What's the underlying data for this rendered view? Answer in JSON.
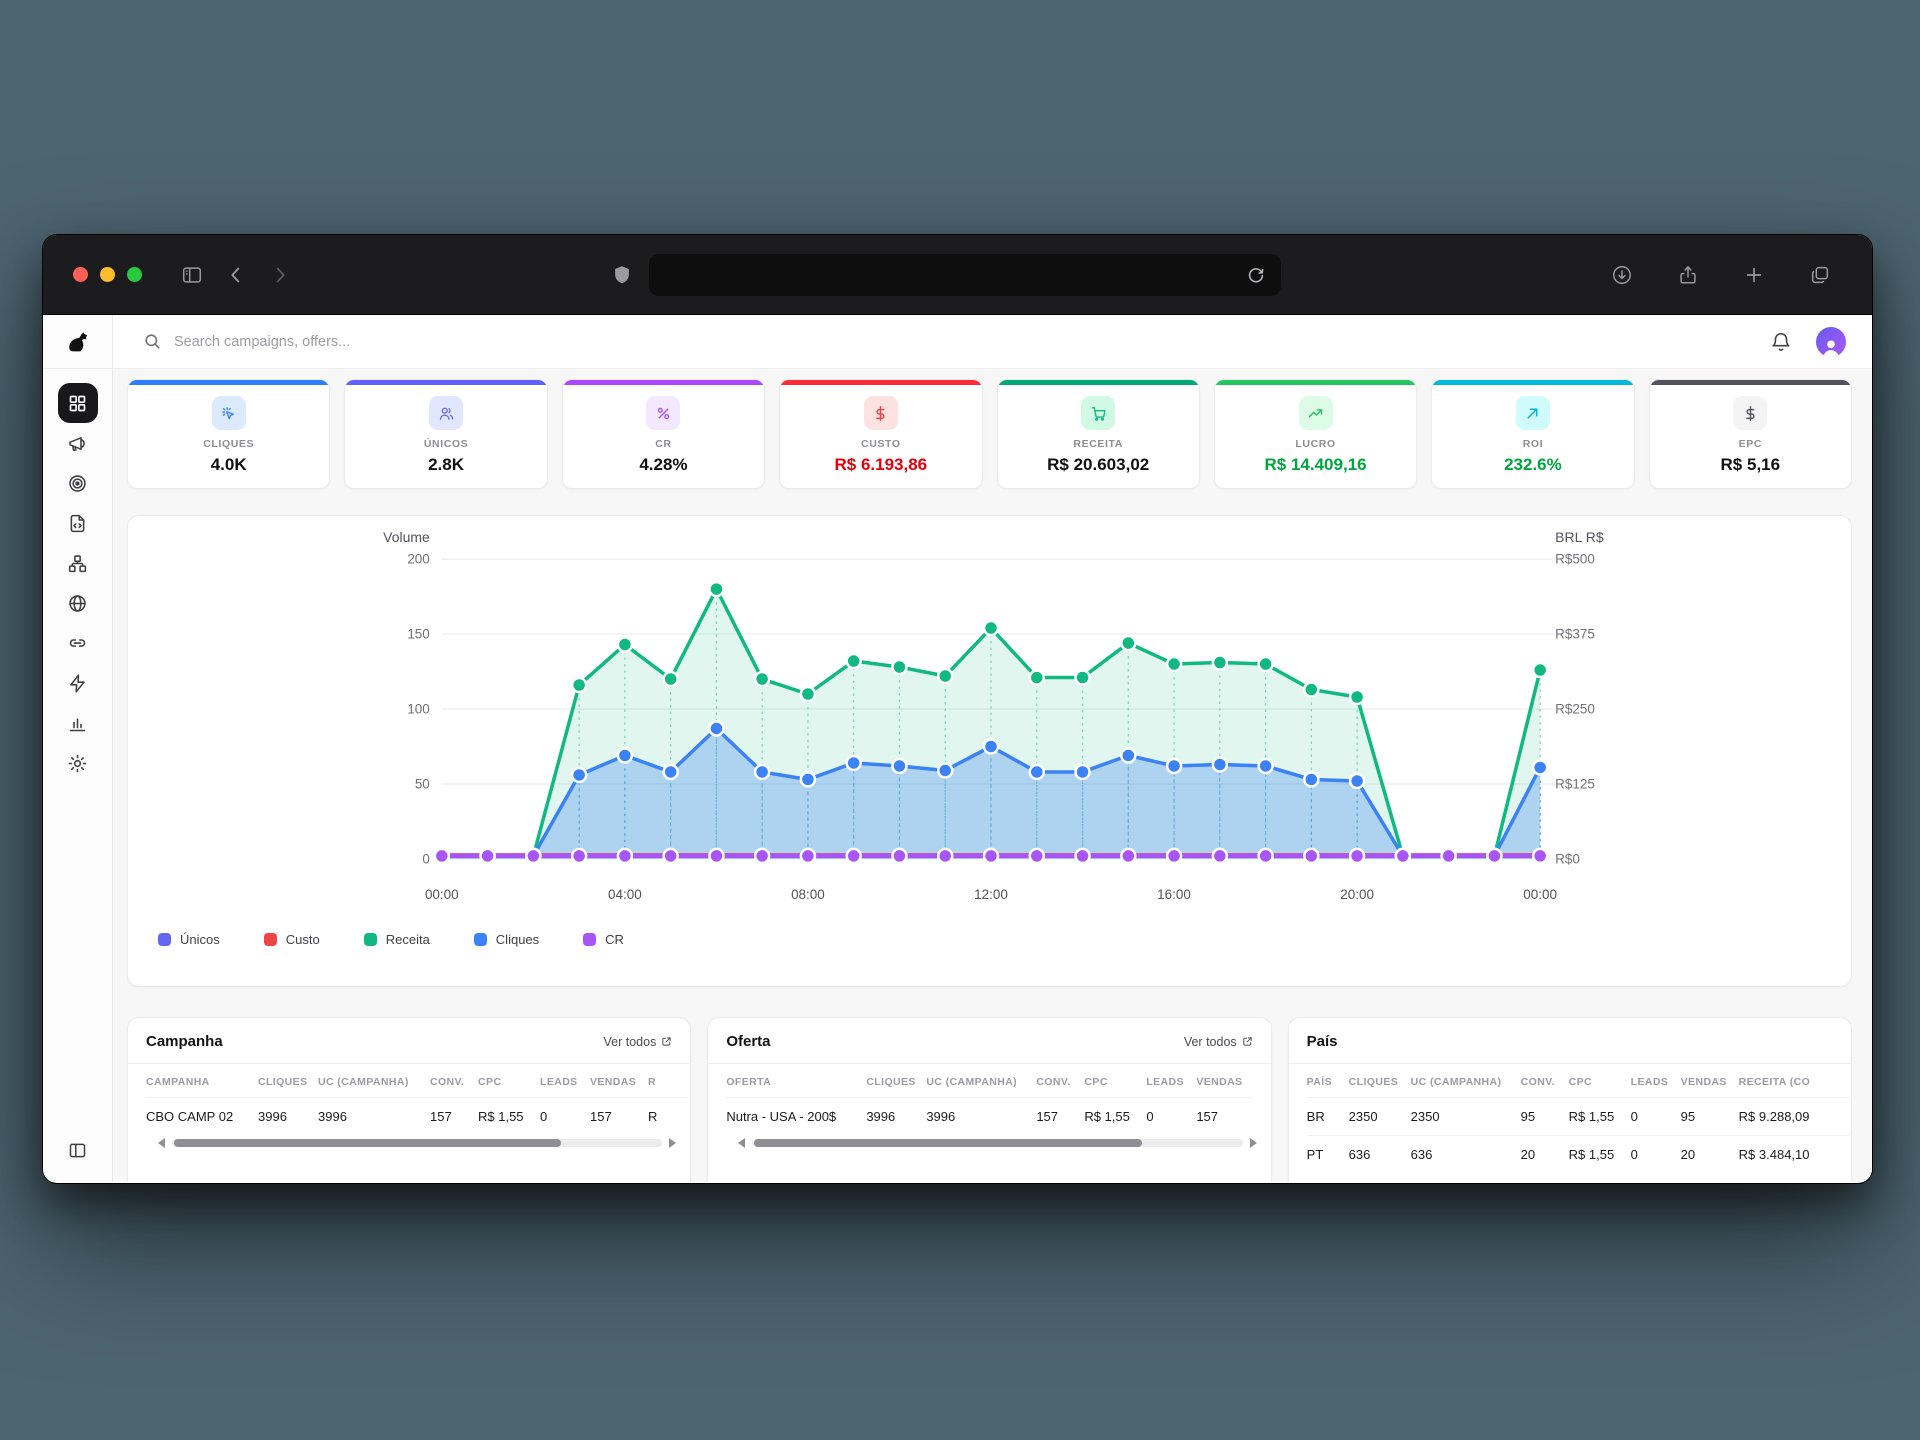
{
  "browser": {
    "traffic_lights": {
      "close": "#ff5f57",
      "minimize": "#febc2e",
      "zoom": "#28c840"
    },
    "url_text": ""
  },
  "header": {
    "search_placeholder": "Search campaigns, offers..."
  },
  "sidebar": {
    "items": [
      {
        "id": "dashboard",
        "icon": "dashboard-grid-icon",
        "active": true
      },
      {
        "id": "campaigns",
        "icon": "megaphone-icon",
        "active": false
      },
      {
        "id": "offers",
        "icon": "target-icon",
        "active": false
      },
      {
        "id": "landers",
        "icon": "file-code-icon",
        "active": false
      },
      {
        "id": "flows",
        "icon": "sitemap-icon",
        "active": false
      },
      {
        "id": "domains",
        "icon": "globe-icon",
        "active": false
      },
      {
        "id": "links",
        "icon": "link-icon",
        "active": false
      },
      {
        "id": "automation",
        "icon": "zap-icon",
        "active": false
      },
      {
        "id": "reports",
        "icon": "bar-chart-icon",
        "active": false
      },
      {
        "id": "settings",
        "icon": "gear-icon",
        "active": false
      }
    ]
  },
  "kpis": [
    {
      "label": "CLIQUES",
      "value": "4.0K",
      "accent": "#2b7fff",
      "icon": "cursor-click-icon",
      "icon_color": "#3b82f6",
      "icon_bg": "#dbeafe",
      "value_color": "#111113"
    },
    {
      "label": "ÚNICOS",
      "value": "2.8K",
      "accent": "#615fff",
      "icon": "users-icon",
      "icon_color": "#6366f1",
      "icon_bg": "#e0e7ff",
      "value_color": "#111113"
    },
    {
      "label": "CR",
      "value": "4.28%",
      "accent": "#ad46ff",
      "icon": "percent-icon",
      "icon_color": "#a855f7",
      "icon_bg": "#f3e8ff",
      "value_color": "#111113"
    },
    {
      "label": "CUSTO",
      "value": "R$ 6.193,86",
      "accent": "#fb2c36",
      "icon": "dollar-icon",
      "icon_color": "#ef4444",
      "icon_bg": "#fee2e2",
      "value_color": "#e7000b"
    },
    {
      "label": "RECEITA",
      "value": "R$ 20.603,02",
      "accent": "#00a875",
      "icon": "cart-icon",
      "icon_color": "#10b981",
      "icon_bg": "#d1fae5",
      "value_color": "#111113"
    },
    {
      "label": "LUCRO",
      "value": "R$ 14.409,16",
      "accent": "#22c55e",
      "icon": "trending-up-icon",
      "icon_color": "#22c55e",
      "icon_bg": "#dcfce7",
      "value_color": "#00a63e"
    },
    {
      "label": "ROI",
      "value": "232.6%",
      "accent": "#00b8db",
      "icon": "arrow-up-right-icon",
      "icon_color": "#06b6d4",
      "icon_bg": "#cffafe",
      "value_color": "#00a63e"
    },
    {
      "label": "EPC",
      "value": "R$ 5,16",
      "accent": "#52525b",
      "icon": "dollar-icon",
      "icon_color": "#52525b",
      "icon_bg": "#f4f4f5",
      "value_color": "#111113"
    }
  ],
  "chart_data": {
    "type": "line",
    "title": "",
    "left_axis": {
      "title": "Volume",
      "ticks": [
        0,
        50,
        100,
        150,
        200
      ],
      "range": [
        0,
        200
      ]
    },
    "right_axis": {
      "title": "BRL R$",
      "ticks": [
        "R$0",
        "R$125",
        "R$250",
        "R$375",
        "R$500"
      ],
      "range": [
        0,
        500
      ]
    },
    "x": [
      "00:00",
      "01:00",
      "02:00",
      "03:00",
      "04:00",
      "05:00",
      "06:00",
      "07:00",
      "08:00",
      "09:00",
      "10:00",
      "11:00",
      "12:00",
      "13:00",
      "14:00",
      "15:00",
      "16:00",
      "17:00",
      "18:00",
      "19:00",
      "20:00",
      "21:00",
      "22:00",
      "23:00",
      "00:00"
    ],
    "x_tick_indices": [
      0,
      4,
      8,
      12,
      16,
      20,
      24
    ],
    "grid": true,
    "legend_position": "bottom",
    "series": [
      {
        "name": "Únicos",
        "color": "#6366f1",
        "values": [
          2,
          2,
          2,
          56,
          69,
          58,
          87,
          58,
          53,
          64,
          62,
          59,
          75,
          58,
          58,
          69,
          62,
          63,
          62,
          53,
          52,
          2,
          2,
          2,
          61
        ]
      },
      {
        "name": "Custo",
        "color": "#ef4444",
        "values": [
          3,
          3,
          3,
          3,
          3,
          3,
          3,
          3,
          3,
          3,
          3,
          3,
          3,
          3,
          3,
          3,
          3,
          3,
          3,
          3,
          3,
          3,
          3,
          3,
          3
        ]
      },
      {
        "name": "Receita",
        "color": "#10b981",
        "values": [
          2,
          2,
          2,
          116,
          143,
          120,
          180,
          120,
          110,
          132,
          128,
          122,
          154,
          121,
          121,
          144,
          130,
          131,
          130,
          113,
          108,
          2,
          2,
          2,
          126
        ]
      },
      {
        "name": "Cliques",
        "color": "#3b82f6",
        "values": [
          2,
          2,
          2,
          56,
          69,
          58,
          87,
          58,
          53,
          64,
          62,
          59,
          75,
          58,
          58,
          69,
          62,
          63,
          62,
          53,
          52,
          2,
          2,
          2,
          61
        ]
      },
      {
        "name": "CR",
        "color": "#a855f7",
        "values": [
          2,
          2,
          2,
          2,
          2,
          2,
          2,
          2,
          2,
          2,
          2,
          2,
          2,
          2,
          2,
          2,
          2,
          2,
          2,
          2,
          2,
          2,
          2,
          2,
          2
        ]
      }
    ]
  },
  "legend": [
    {
      "label": "Únicos",
      "color": "#6366f1"
    },
    {
      "label": "Custo",
      "color": "#ef4444"
    },
    {
      "label": "Receita",
      "color": "#10b981"
    },
    {
      "label": "Cliques",
      "color": "#3b82f6"
    },
    {
      "label": "CR",
      "color": "#a855f7"
    }
  ],
  "tables": [
    {
      "title": "Campanha",
      "link": "Ver todos",
      "headers": [
        "CAMPANHA",
        "CLIQUES",
        "UC (CAMPANHA)",
        "CONV.",
        "CPC",
        "LEADS",
        "VENDAS",
        "R"
      ],
      "rows": [
        [
          "CBO CAMP 02",
          "3996",
          "3996",
          "157",
          "R$ 1,55",
          "0",
          "157",
          "R"
        ]
      ],
      "scrollbar": true
    },
    {
      "title": "Oferta",
      "link": "Ver todos",
      "headers": [
        "OFERTA",
        "CLIQUES",
        "UC (CAMPANHA)",
        "CONV.",
        "CPC",
        "LEADS",
        "VENDAS"
      ],
      "rows": [
        [
          "Nutra - USA - 200$",
          "3996",
          "3996",
          "157",
          "R$ 1,55",
          "0",
          "157"
        ]
      ],
      "scrollbar": true
    },
    {
      "title": "País",
      "link": "",
      "headers": [
        "PAÍS",
        "CLIQUES",
        "UC (CAMPANHA)",
        "CONV.",
        "CPC",
        "LEADS",
        "VENDAS",
        "RECEITA (CO"
      ],
      "rows": [
        [
          "BR",
          "2350",
          "2350",
          "95",
          "R$ 1,55",
          "0",
          "95",
          "R$ 9.288,09"
        ],
        [
          "PT",
          "636",
          "636",
          "20",
          "R$ 1,55",
          "0",
          "20",
          "R$ 3.484,10"
        ]
      ],
      "scrollbar": false
    }
  ]
}
